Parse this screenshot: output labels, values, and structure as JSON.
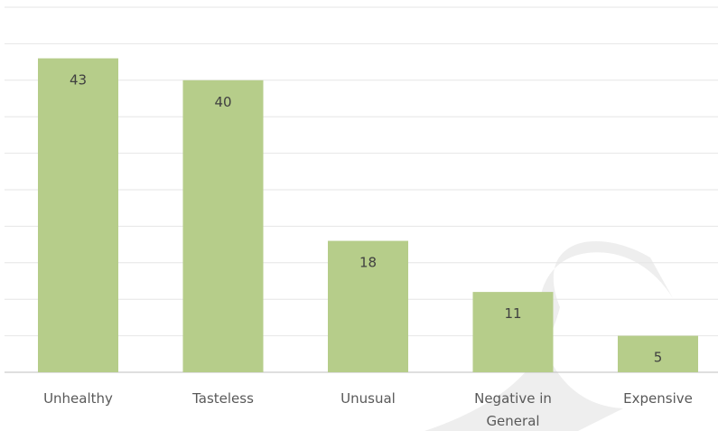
{
  "chart_data": {
    "type": "bar",
    "categories": [
      "Unhealthy",
      "Tasteless",
      "Unusual",
      "Negative in General",
      "Expensive"
    ],
    "values": [
      43,
      40,
      18,
      11,
      5
    ],
    "title": "",
    "xlabel": "",
    "ylabel": "",
    "ylim": [
      0,
      50
    ],
    "grid": true,
    "legend": "none",
    "bar_color": "#b6cd8a",
    "grid_color": "#e6e6e6",
    "axis_color": "#bfbfbf",
    "watermark_color": "#eeeeee"
  }
}
